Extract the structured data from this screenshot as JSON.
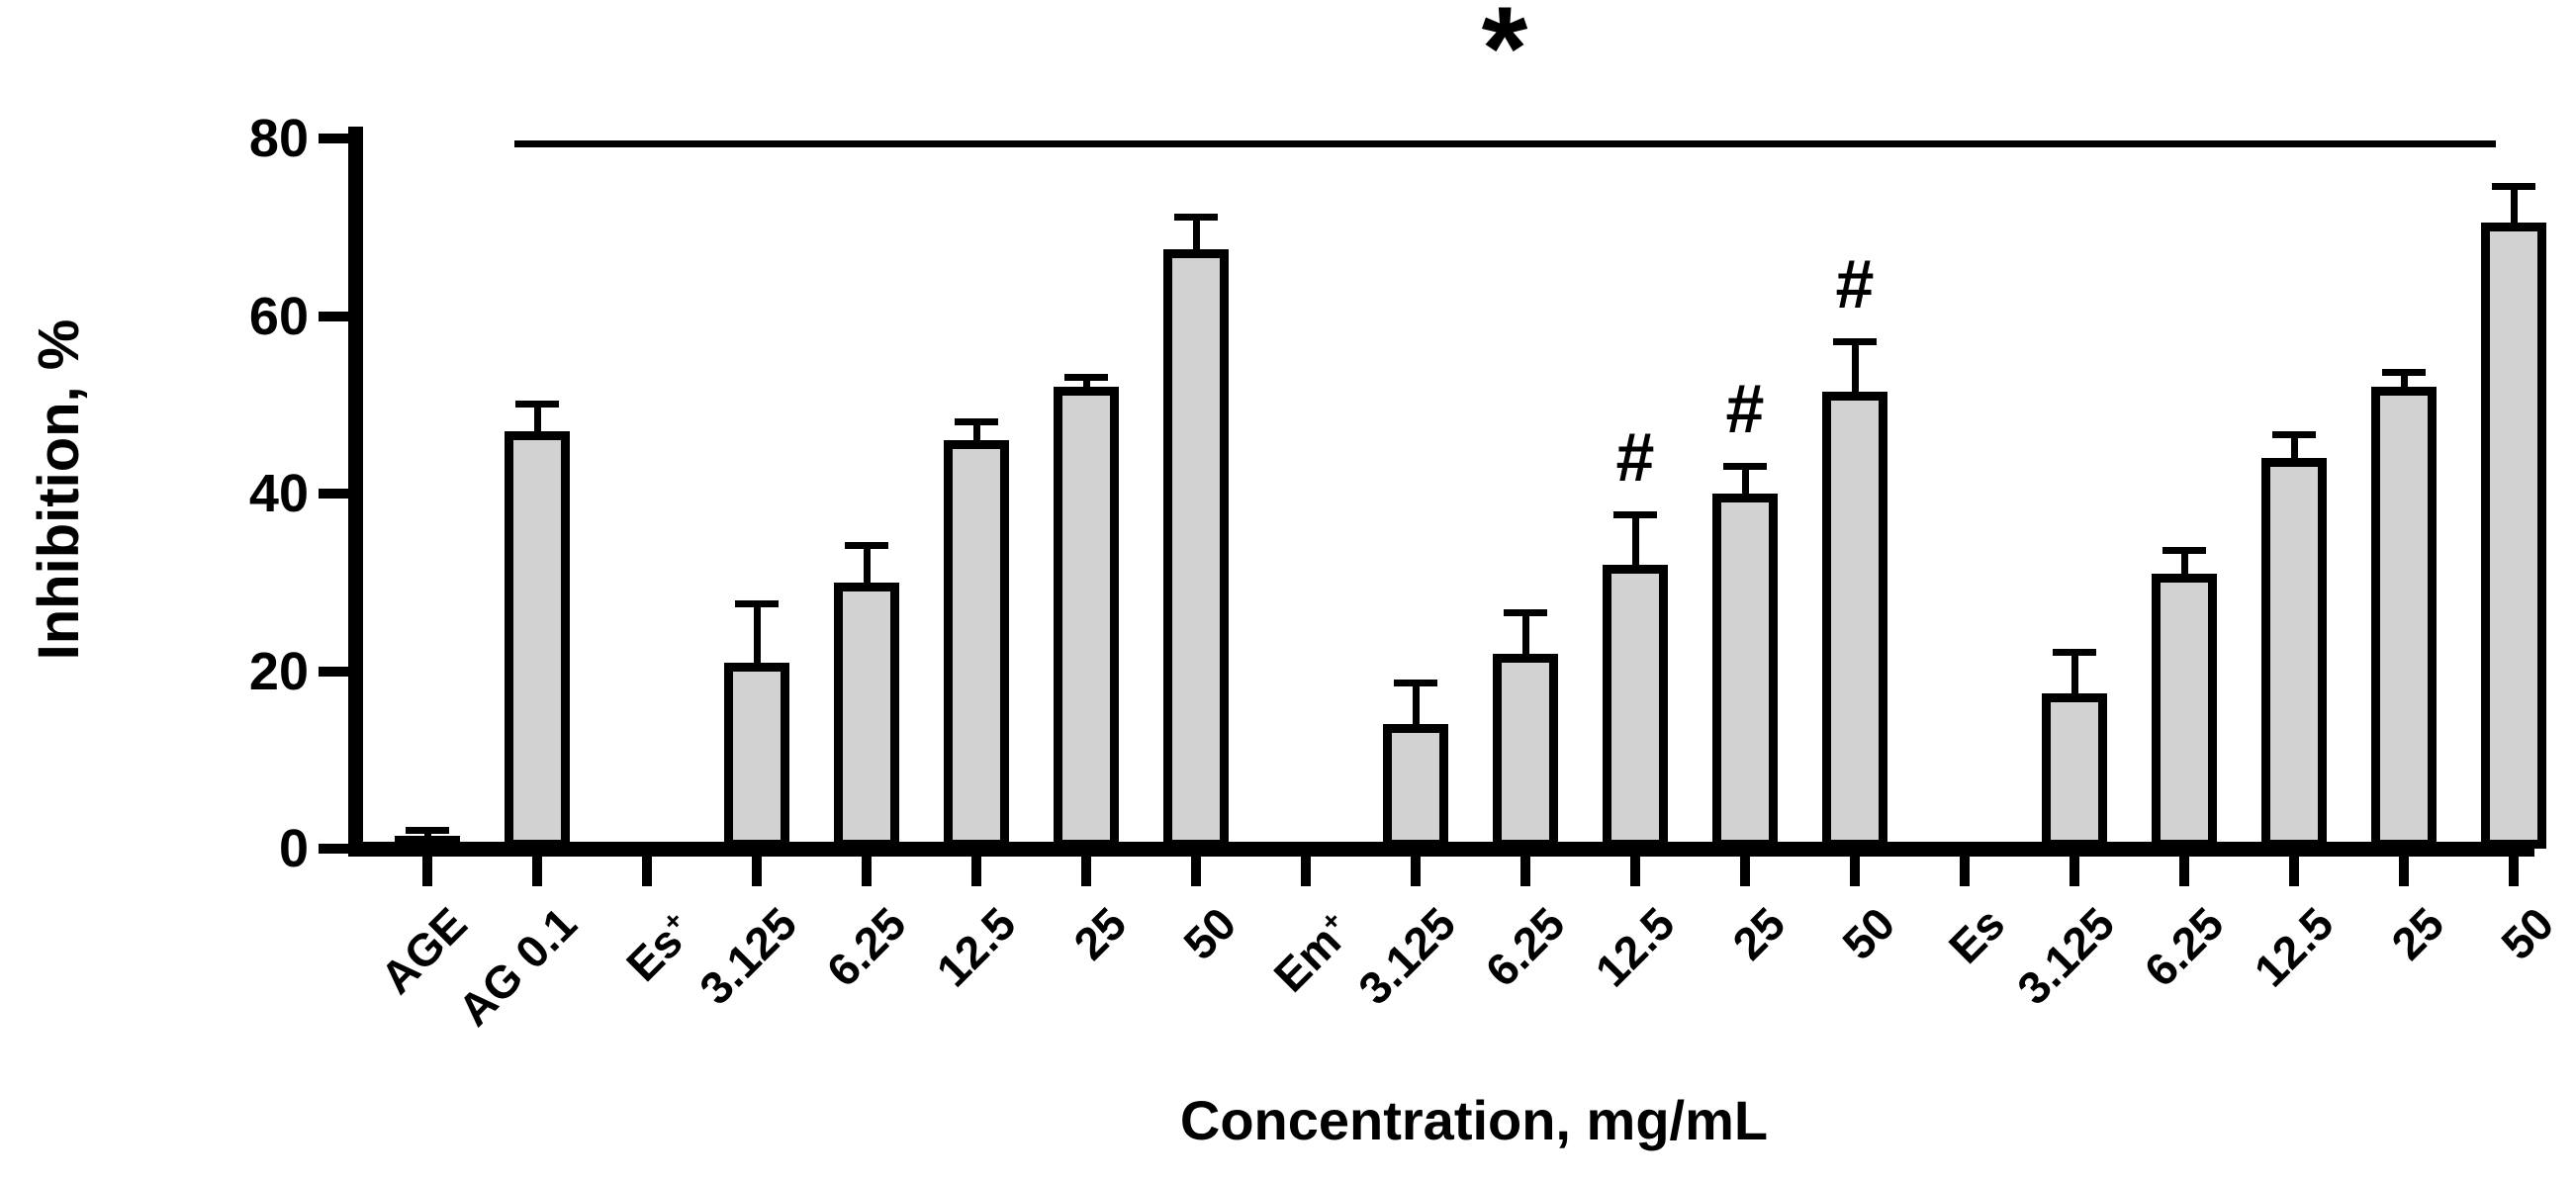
{
  "figure": {
    "y_axis_title": "Inhibition, %",
    "x_axis_title": "Concentration, mg/mL"
  },
  "chart_data": {
    "type": "bar",
    "title": "",
    "xlabel": "Concentration, mg/mL",
    "ylabel": "Inhibition, %",
    "ylim": [
      0,
      80
    ],
    "yticks": [
      0,
      20,
      40,
      60,
      80
    ],
    "grid": false,
    "legend": "none",
    "bar_fill_color": "#d2d2d2",
    "bar_border_color": "#000000",
    "categories": [
      "AGE",
      "AG 0.1",
      "Es+",
      "3.125",
      "6.25",
      "12.5",
      "25",
      "50",
      "Em+",
      "3.125",
      "6.25",
      "12.5",
      "25",
      "50",
      "Es",
      "3.125",
      "6.25",
      "12.5",
      "25",
      "50"
    ],
    "points": [
      {
        "label": "AGE",
        "sup": "",
        "value": 1.5,
        "error": 1.0,
        "hash": false
      },
      {
        "label": "AG 0.1",
        "sup": "",
        "value": 47,
        "error": 3.5,
        "hash": false
      },
      {
        "label": "Es",
        "sup": "+",
        "value": 0,
        "error": 0,
        "hash": false
      },
      {
        "label": "3.125",
        "sup": "",
        "value": 21,
        "error": 7,
        "hash": false
      },
      {
        "label": "6.25",
        "sup": "",
        "value": 30,
        "error": 4.5,
        "hash": false
      },
      {
        "label": "12.5",
        "sup": "",
        "value": 46,
        "error": 2.5,
        "hash": false
      },
      {
        "label": "25",
        "sup": "",
        "value": 52,
        "error": 1.5,
        "hash": false
      },
      {
        "label": "50",
        "sup": "",
        "value": 67.5,
        "error": 4,
        "hash": false
      },
      {
        "label": "Em",
        "sup": "+",
        "value": 0,
        "error": 0,
        "hash": false
      },
      {
        "label": "3.125",
        "sup": "",
        "value": 14,
        "error": 5,
        "hash": false
      },
      {
        "label": "6.25",
        "sup": "",
        "value": 22,
        "error": 5,
        "hash": false
      },
      {
        "label": "12.5",
        "sup": "",
        "value": 32,
        "error": 6,
        "hash": true
      },
      {
        "label": "25",
        "sup": "",
        "value": 40,
        "error": 3.5,
        "hash": true
      },
      {
        "label": "50",
        "sup": "",
        "value": 51.5,
        "error": 6,
        "hash": true
      },
      {
        "label": "Es",
        "sup": "",
        "value": 0,
        "error": 0,
        "hash": false
      },
      {
        "label": "3.125",
        "sup": "",
        "value": 17.5,
        "error": 5,
        "hash": false
      },
      {
        "label": "6.25",
        "sup": "",
        "value": 31,
        "error": 3,
        "hash": false
      },
      {
        "label": "12.5",
        "sup": "",
        "value": 44,
        "error": 3,
        "hash": false
      },
      {
        "label": "25",
        "sup": "",
        "value": 52,
        "error": 2,
        "hash": false
      },
      {
        "label": "50",
        "sup": "",
        "value": 70.5,
        "error": 4.5,
        "hash": false
      }
    ],
    "annotations": {
      "significance_line": {
        "symbol": "*",
        "from_category": "AG 0.1",
        "to_category": "50",
        "y_value": 80
      },
      "hash_symbol": "#",
      "hash_on_categories": [
        "12.5",
        "25",
        "50"
      ],
      "hash_group": "middle (after Em+)"
    }
  }
}
